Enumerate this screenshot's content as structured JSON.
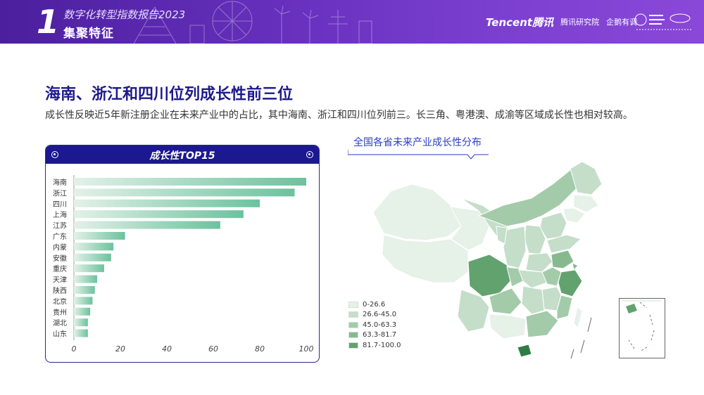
{
  "header": {
    "section_number": "1",
    "report_title": "数字化转型指数报告2023",
    "section_name": "集聚特征",
    "logo_tencent": "Tencent腾讯",
    "logo_research": "腾讯研究院",
    "logo_qipeng": "企鹅有调"
  },
  "main": {
    "title": "海南、浙江和四川位列成长性前三位",
    "subtitle": "成长性反映近5年新注册企业在未来产业中的占比，其中海南、浙江和四川位列前三。长三角、粤港澳、成渝等区域成长性也相对较高。"
  },
  "chart_data": {
    "type": "bar",
    "orientation": "horizontal",
    "title": "成长性TOP15",
    "categories": [
      "海南",
      "浙江",
      "四川",
      "上海",
      "江苏",
      "广东",
      "内蒙",
      "安徽",
      "重庆",
      "天津",
      "陕西",
      "北京",
      "贵州",
      "湖北",
      "山东"
    ],
    "values": [
      100,
      95,
      80,
      73,
      63,
      22,
      17,
      16,
      13,
      10,
      9,
      8,
      7,
      6,
      6
    ],
    "xlim": [
      0,
      100
    ],
    "xticks": [
      0,
      20,
      40,
      60,
      80,
      100
    ],
    "grid": false,
    "colors": {
      "bar_start": "#e3f1e8",
      "bar_end": "#6cc29e"
    }
  },
  "map": {
    "title": "全国各省未来产业成长性分布",
    "legend": [
      {
        "label": "0-26.6",
        "color": "#e6f1e8"
      },
      {
        "label": "26.6-45.0",
        "color": "#c4dec9"
      },
      {
        "label": "45.0-63.3",
        "color": "#a3cba9"
      },
      {
        "label": "63.3-81.7",
        "color": "#86ba8e"
      },
      {
        "label": "81.7-100.0",
        "color": "#62a26f"
      }
    ]
  }
}
